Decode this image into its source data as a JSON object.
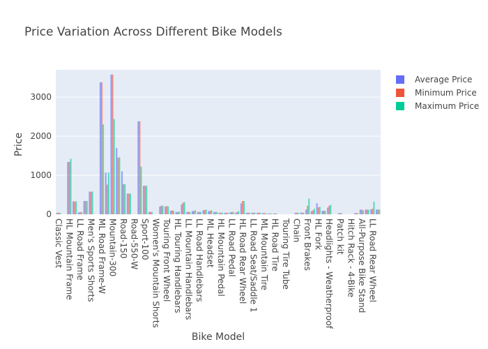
{
  "chart_data": {
    "type": "bar",
    "title": "Price Variation Across Different Bike Models",
    "xlabel": "Bike Model",
    "ylabel": "Price",
    "ylim": [
      0,
      3700
    ],
    "yticks": [
      0,
      1000,
      2000,
      3000
    ],
    "legend_position": "top-right",
    "categories": [
      "Classic Vest",
      "",
      "HL Mountain Frame",
      "",
      "LL Road Frame",
      "",
      "Men's Sports Shorts",
      "",
      "ML Road Frame-W",
      "",
      "Mountain-300",
      "",
      "Road-150",
      "",
      "Road-550-W",
      "",
      "Sport-100",
      "",
      "Women's Mountain Shorts",
      "",
      "Touring Front Wheel",
      "",
      "HL Touring Handlebars",
      "",
      "LL Mountain Handlebars",
      "",
      "LL Road Handlebars",
      "",
      "ML Headset",
      "",
      "HL Mountain Pedal",
      "",
      "LL Road Pedal",
      "",
      "HL Road Rear Wheel",
      "",
      "LL Road Seat/Saddle 1",
      "",
      "ML Mountain Tire",
      "",
      "HL Road Tire",
      "",
      "Touring Tire Tube",
      "",
      "Chain",
      "",
      "Front Brakes",
      "",
      "HL Fork",
      "",
      "Headlights - Weatherproof",
      "",
      "Patch kit",
      "",
      "Hitch Rack - 4-Bike",
      "",
      "All-Purpose Bike Stand",
      "",
      "LL Road Rear Wheel",
      ""
    ],
    "series": [
      {
        "name": "Average Price",
        "color": "#636efa",
        "values": [
          40,
          0,
          1340,
          330,
          50,
          340,
          580,
          0,
          3380,
          1070,
          3580,
          1700,
          1100,
          530,
          0,
          2380,
          730,
          60,
          0,
          200,
          200,
          90,
          60,
          250,
          60,
          80,
          60,
          100,
          80,
          60,
          40,
          40,
          50,
          40,
          280,
          40,
          40,
          40,
          30,
          20,
          20,
          0,
          0,
          0,
          40,
          40,
          120,
          80,
          280,
          90,
          170,
          0,
          30,
          0,
          0,
          30,
          120,
          120,
          130,
          120
        ]
      },
      {
        "name": "Minimum Price",
        "color": "#ef553b",
        "values": [
          40,
          0,
          1340,
          330,
          50,
          340,
          580,
          0,
          3380,
          760,
          3580,
          1450,
          770,
          530,
          0,
          2380,
          730,
          60,
          0,
          220,
          210,
          100,
          60,
          300,
          60,
          90,
          60,
          110,
          90,
          60,
          40,
          40,
          60,
          60,
          340,
          40,
          40,
          40,
          30,
          20,
          20,
          0,
          0,
          0,
          40,
          40,
          220,
          100,
          180,
          90,
          220,
          0,
          30,
          0,
          0,
          30,
          120,
          120,
          140,
          120
        ]
      },
      {
        "name": "Maximum Price",
        "color": "#00cc96",
        "values": [
          40,
          0,
          1420,
          330,
          60,
          340,
          580,
          0,
          2300,
          1070,
          2440,
          1460,
          770,
          530,
          0,
          1220,
          730,
          60,
          0,
          220,
          200,
          90,
          70,
          310,
          60,
          100,
          60,
          120,
          100,
          60,
          40,
          40,
          60,
          80,
          340,
          40,
          40,
          40,
          30,
          20,
          20,
          0,
          0,
          0,
          40,
          40,
          400,
          140,
          190,
          90,
          240,
          0,
          30,
          0,
          0,
          30,
          100,
          120,
          320,
          120
        ]
      }
    ]
  }
}
